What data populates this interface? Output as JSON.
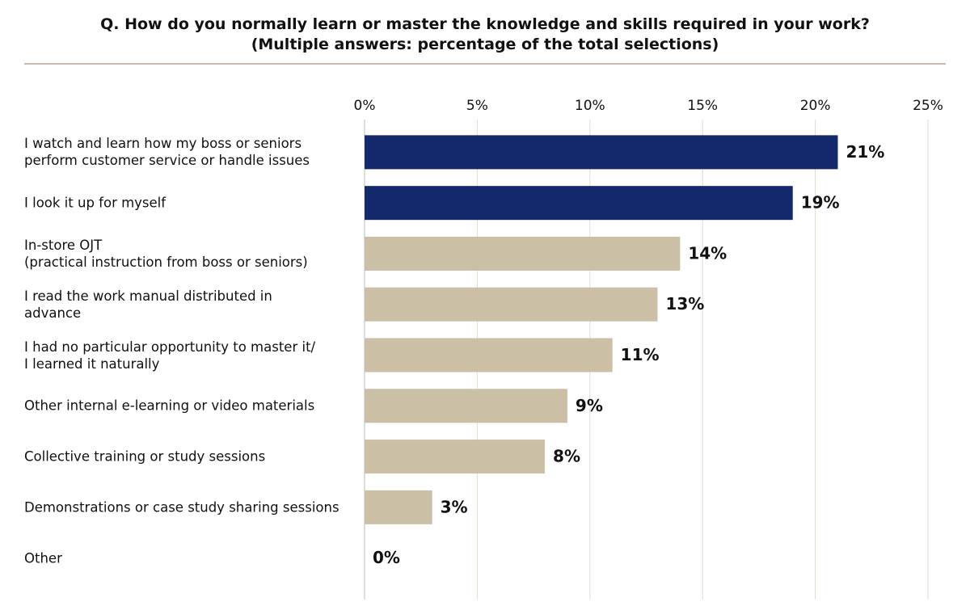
{
  "chart_data": {
    "type": "bar",
    "orientation": "horizontal",
    "title": "Q. How do you normally learn or master the knowledge and skills required in your work?\n(Multiple answers: percentage of the total selections)",
    "categories": [
      "I watch and learn how my boss or seniors\nperform customer service or handle issues",
      "I look it up for myself",
      "In-store OJT\n (practical instruction from boss or seniors)",
      "I read the work manual distributed in\nadvance",
      "I had no particular opportunity to master it/\nI learned it naturally",
      "Other internal e-learning or video materials",
      "Collective training or study sessions",
      "Demonstrations or case study sharing sessions",
      "Other"
    ],
    "values": [
      21,
      19,
      14,
      13,
      11,
      9,
      8,
      3,
      0
    ],
    "value_labels": [
      "21%",
      "19%",
      "14%",
      "13%",
      "11%",
      "9%",
      "8%",
      "3%",
      "0%"
    ],
    "colors": [
      "#13296b",
      "#13296b",
      "#cbbfa6",
      "#cbbfa6",
      "#cbbfa6",
      "#cbbfa6",
      "#cbbfa6",
      "#cbbfa6",
      "#cbbfa6"
    ],
    "xlim": [
      0,
      25
    ],
    "xticks": [
      {
        "value": 0,
        "label": "0%"
      },
      {
        "value": 5,
        "label": "5%"
      },
      {
        "value": 10,
        "label": "10%"
      },
      {
        "value": 15,
        "label": "15%"
      },
      {
        "value": 20,
        "label": "20%"
      },
      {
        "value": 25,
        "label": "25%"
      }
    ],
    "grid": true
  }
}
